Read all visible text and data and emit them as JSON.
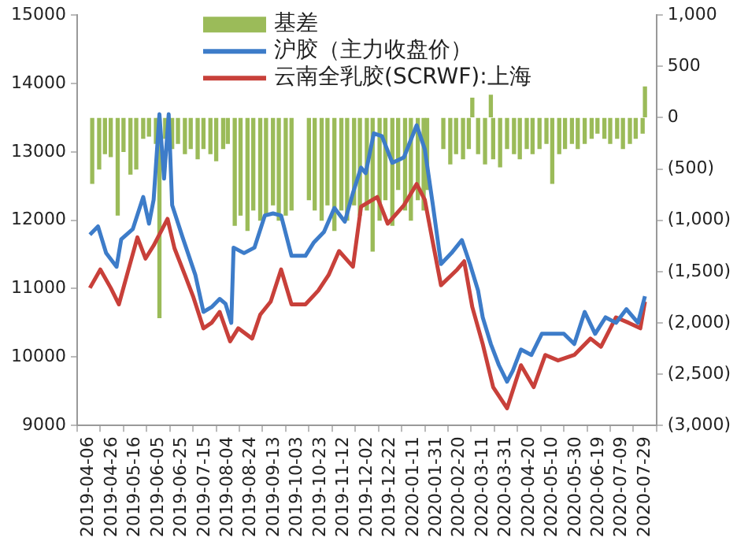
{
  "chart_data": {
    "type": "line",
    "xlim": [
      "2019-04-06",
      "2020-07-29"
    ],
    "xticks": [
      "2019-04-06",
      "2019-04-26",
      "2019-05-16",
      "2019-06-05",
      "2019-06-25",
      "2019-07-15",
      "2019-08-04",
      "2019-08-24",
      "2019-09-13",
      "2019-10-03",
      "2019-10-23",
      "2019-11-12",
      "2019-12-02",
      "2019-12-22",
      "2020-01-11",
      "2020-01-31",
      "2020-02-20",
      "2020-03-11",
      "2020-03-31",
      "2020-04-20",
      "2020-05-10",
      "2020-05-30",
      "2020-06-19",
      "2020-07-09",
      "2020-07-29"
    ],
    "ylim": [
      9000,
      15000
    ],
    "yticks": [
      9000,
      10000,
      11000,
      12000,
      13000,
      14000,
      15000
    ],
    "y2lim": [
      -3000,
      1000
    ],
    "y2ticks": [
      {
        "value": -3000,
        "label": "(3,000)"
      },
      {
        "value": -2500,
        "label": "(2,500)"
      },
      {
        "value": -2000,
        "label": "(2,000)"
      },
      {
        "value": -1500,
        "label": "(1,500)"
      },
      {
        "value": -1000,
        "label": "(1,000)"
      },
      {
        "value": -500,
        "label": "(500)"
      },
      0,
      500,
      {
        "value": 1000,
        "label": "1,000"
      }
    ],
    "grid": false,
    "legend": "top",
    "marker": "none",
    "line_style": "solid",
    "series": [
      {
        "name": "基差",
        "type": "bar",
        "axis": "y2",
        "color": "#9bbb59",
        "x": [
          "2019-04-09",
          "2019-04-15",
          "2019-04-20",
          "2019-04-25",
          "2019-05-01",
          "2019-05-06",
          "2019-05-12",
          "2019-05-17",
          "2019-05-23",
          "2019-05-28",
          "2019-06-03",
          "2019-06-06",
          "2019-06-11",
          "2019-06-17",
          "2019-06-22",
          "2019-06-28",
          "2019-07-03",
          "2019-07-09",
          "2019-07-14",
          "2019-07-20",
          "2019-07-25",
          "2019-07-31",
          "2019-08-04",
          "2019-08-10",
          "2019-08-15",
          "2019-08-21",
          "2019-08-26",
          "2019-09-01",
          "2019-09-06",
          "2019-09-12",
          "2019-09-17",
          "2019-09-23",
          "2019-09-28",
          "2019-10-13",
          "2019-10-18",
          "2019-10-24",
          "2019-10-29",
          "2019-11-04",
          "2019-11-10",
          "2019-11-15",
          "2019-11-21",
          "2019-11-26",
          "2019-12-02",
          "2019-12-07",
          "2019-12-13",
          "2019-12-18",
          "2019-12-24",
          "2019-12-29",
          "2020-01-04",
          "2020-01-09",
          "2020-01-15",
          "2020-01-20",
          "2020-01-23",
          "2020-02-06",
          "2020-02-12",
          "2020-02-17",
          "2020-02-23",
          "2020-02-28",
          "2020-03-02",
          "2020-03-07",
          "2020-03-13",
          "2020-03-18",
          "2020-03-20",
          "2020-03-26",
          "2020-04-01",
          "2020-04-07",
          "2020-04-12",
          "2020-04-18",
          "2020-04-23",
          "2020-04-29",
          "2020-05-05",
          "2020-05-10",
          "2020-05-16",
          "2020-05-21",
          "2020-05-27",
          "2020-06-01",
          "2020-06-07",
          "2020-06-13",
          "2020-06-18",
          "2020-06-24",
          "2020-06-29",
          "2020-07-05",
          "2020-07-10",
          "2020-07-16",
          "2020-07-21",
          "2020-07-27",
          "2020-07-29"
        ],
        "values": [
          -640,
          -500,
          -350,
          -380,
          -950,
          -330,
          -550,
          -500,
          -200,
          -180,
          -250,
          -1950,
          -200,
          -300,
          -250,
          -350,
          -300,
          -400,
          -300,
          -350,
          -420,
          -300,
          -250,
          -1050,
          -950,
          -1100,
          -900,
          -1000,
          -950,
          -850,
          -1000,
          -950,
          -900,
          -800,
          -900,
          -1000,
          -850,
          -1100,
          -900,
          -1000,
          -850,
          -950,
          -900,
          -1300,
          -1000,
          -800,
          -1050,
          -700,
          -900,
          -1000,
          -800,
          -900,
          -700,
          -300,
          -450,
          -350,
          -400,
          -300,
          190,
          -350,
          -450,
          220,
          -400,
          -480,
          -300,
          -350,
          -400,
          -300,
          -350,
          -300,
          -250,
          -640,
          -350,
          -300,
          -250,
          -300,
          -250,
          -200,
          -150,
          -200,
          -250,
          -200,
          -300,
          -250,
          -200,
          -150,
          300
        ]
      },
      {
        "name": "沪胶（主力收盘价）",
        "color": "#3d7cc9",
        "x": [
          "2019-04-07",
          "2019-04-14",
          "2019-04-21",
          "2019-04-30",
          "2019-05-04",
          "2019-05-14",
          "2019-05-23",
          "2019-05-28",
          "2019-06-01",
          "2019-06-06",
          "2019-06-10",
          "2019-06-14",
          "2019-06-17",
          "2019-06-26",
          "2019-07-07",
          "2019-07-14",
          "2019-07-21",
          "2019-07-28",
          "2019-08-02",
          "2019-08-07",
          "2019-08-09",
          "2019-08-18",
          "2019-08-27",
          "2019-09-05",
          "2019-09-12",
          "2019-09-19",
          "2019-09-28",
          "2019-10-10",
          "2019-10-17",
          "2019-10-26",
          "2019-11-04",
          "2019-11-13",
          "2019-11-20",
          "2019-11-27",
          "2019-12-01",
          "2019-12-08",
          "2019-12-15",
          "2019-12-24",
          "2020-01-03",
          "2020-01-14",
          "2020-01-21",
          "2020-01-28",
          "2020-02-04",
          "2020-02-13",
          "2020-02-22",
          "2020-02-29",
          "2020-03-07",
          "2020-03-11",
          "2020-03-18",
          "2020-03-25",
          "2020-04-01",
          "2020-04-06",
          "2020-04-13",
          "2020-04-22",
          "2020-05-01",
          "2020-05-10",
          "2020-05-20",
          "2020-05-29",
          "2020-06-07",
          "2020-06-16",
          "2020-06-25",
          "2020-07-04",
          "2020-07-13",
          "2020-07-23",
          "2020-07-29"
        ],
        "values": [
          11790,
          11910,
          11520,
          11320,
          11720,
          11870,
          12340,
          11950,
          12300,
          13550,
          12610,
          13550,
          12220,
          11750,
          11200,
          10660,
          10730,
          10850,
          10780,
          10500,
          11600,
          11520,
          11600,
          12070,
          12100,
          12070,
          11480,
          11480,
          11670,
          11830,
          12180,
          11980,
          12400,
          12770,
          12690,
          13270,
          13230,
          12840,
          12920,
          13390,
          13040,
          12220,
          11360,
          11520,
          11710,
          11360,
          10970,
          10580,
          10190,
          9880,
          9640,
          9800,
          10110,
          10030,
          10340,
          10340,
          10340,
          10190,
          10660,
          10340,
          10580,
          10500,
          10700,
          10500,
          10890
        ]
      },
      {
        "name": "云南全乳胶(SCRWF):上海",
        "color": "#c8403a",
        "x": [
          "2019-04-07",
          "2019-04-16",
          "2019-04-25",
          "2019-05-02",
          "2019-05-09",
          "2019-05-18",
          "2019-05-25",
          "2019-06-01",
          "2019-06-13",
          "2019-06-19",
          "2019-06-28",
          "2019-07-05",
          "2019-07-14",
          "2019-07-21",
          "2019-07-28",
          "2019-08-06",
          "2019-08-13",
          "2019-08-25",
          "2019-09-01",
          "2019-09-10",
          "2019-09-19",
          "2019-09-28",
          "2019-10-10",
          "2019-10-21",
          "2019-10-30",
          "2019-11-08",
          "2019-11-20",
          "2019-11-27",
          "2019-12-11",
          "2019-12-20",
          "2020-01-03",
          "2020-01-14",
          "2020-01-21",
          "2020-01-28",
          "2020-02-04",
          "2020-02-18",
          "2020-02-24",
          "2020-03-02",
          "2020-03-11",
          "2020-03-20",
          "2020-04-01",
          "2020-04-13",
          "2020-04-24",
          "2020-05-04",
          "2020-05-15",
          "2020-05-29",
          "2020-06-12",
          "2020-06-21",
          "2020-07-04",
          "2020-07-15",
          "2020-07-25",
          "2020-07-29"
        ],
        "values": [
          11010,
          11280,
          11010,
          10770,
          11200,
          11750,
          11440,
          11630,
          12020,
          11590,
          11200,
          10890,
          10420,
          10500,
          10660,
          10230,
          10420,
          10270,
          10620,
          10810,
          11280,
          10770,
          10770,
          10970,
          11200,
          11550,
          11320,
          12200,
          12340,
          11950,
          12220,
          12530,
          12300,
          11670,
          11050,
          11280,
          11400,
          10730,
          10190,
          9560,
          9250,
          9880,
          9560,
          10030,
          9950,
          10030,
          10270,
          10150,
          10580,
          10500,
          10420,
          10810
        ]
      }
    ]
  }
}
